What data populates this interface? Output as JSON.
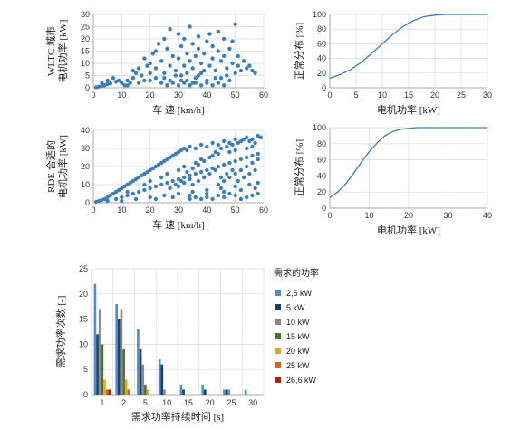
{
  "chart_data": [
    {
      "type": "scatter",
      "ylabel": [
        "WLTC 城市",
        "电机功率 [kW]"
      ],
      "xlabel": "车 速 [km/h]",
      "xlim": [
        0,
        60
      ],
      "ylim": [
        0,
        30
      ],
      "xticks": [
        0,
        10,
        20,
        30,
        40,
        50,
        60
      ],
      "yticks": [
        0,
        5,
        10,
        15,
        20,
        25,
        30
      ],
      "grid": true,
      "color": "#3a7fb8",
      "points": [
        [
          1,
          0.2
        ],
        [
          2,
          0.5
        ],
        [
          3,
          0.8
        ],
        [
          4,
          1
        ],
        [
          5,
          1.5
        ],
        [
          6,
          1.8
        ],
        [
          8,
          2.5
        ],
        [
          9,
          3
        ],
        [
          3,
          2
        ],
        [
          5,
          3
        ],
        [
          7,
          4
        ],
        [
          12,
          1
        ],
        [
          13,
          2
        ],
        [
          14,
          4
        ],
        [
          15,
          6
        ],
        [
          14,
          7
        ],
        [
          16,
          8
        ],
        [
          17,
          5
        ],
        [
          18,
          12
        ],
        [
          19,
          9
        ],
        [
          20,
          10
        ],
        [
          20,
          3
        ],
        [
          21,
          14
        ],
        [
          22,
          15
        ],
        [
          22,
          8
        ],
        [
          23,
          18
        ],
        [
          24,
          11
        ],
        [
          25,
          20
        ],
        [
          25,
          6
        ],
        [
          26,
          16
        ],
        [
          27,
          9
        ],
        [
          27,
          24
        ],
        [
          28,
          13
        ],
        [
          29,
          7
        ],
        [
          30,
          22
        ],
        [
          30,
          12
        ],
        [
          31,
          5
        ],
        [
          31,
          17
        ],
        [
          32,
          20
        ],
        [
          32,
          9
        ],
        [
          33,
          14
        ],
        [
          33,
          3
        ],
        [
          34,
          11
        ],
        [
          34,
          25
        ],
        [
          35,
          8
        ],
        [
          35,
          18
        ],
        [
          36,
          13
        ],
        [
          36,
          4
        ],
        [
          37,
          21
        ],
        [
          37,
          16
        ],
        [
          38,
          10
        ],
        [
          38,
          6
        ],
        [
          39,
          14
        ],
        [
          40,
          19
        ],
        [
          40,
          3
        ],
        [
          41,
          22
        ],
        [
          41,
          9
        ],
        [
          42,
          12
        ],
        [
          42,
          17
        ],
        [
          43,
          7
        ],
        [
          44,
          15
        ],
        [
          44,
          23
        ],
        [
          45,
          11
        ],
        [
          45,
          4
        ],
        [
          46,
          20
        ],
        [
          46,
          13
        ],
        [
          47,
          8
        ],
        [
          48,
          16
        ],
        [
          49,
          10
        ],
        [
          49,
          19
        ],
        [
          50,
          6
        ],
        [
          51,
          13
        ],
        [
          51,
          9
        ],
        [
          52,
          7
        ],
        [
          53,
          11
        ],
        [
          54,
          8
        ],
        [
          55,
          9
        ],
        [
          56,
          7
        ],
        [
          57,
          6
        ],
        [
          50,
          26
        ],
        [
          26,
          1
        ],
        [
          28,
          2
        ],
        [
          30,
          1
        ],
        [
          32,
          2
        ],
        [
          34,
          1
        ],
        [
          36,
          2
        ],
        [
          38,
          1
        ],
        [
          40,
          2
        ],
        [
          42,
          1
        ],
        [
          44,
          2
        ],
        [
          46,
          1
        ],
        [
          48,
          3
        ],
        [
          25,
          4
        ],
        [
          27,
          3
        ],
        [
          29,
          5
        ],
        [
          31,
          3
        ],
        [
          33,
          6
        ],
        [
          35,
          2
        ],
        [
          37,
          5
        ],
        [
          39,
          7
        ],
        [
          43,
          4
        ],
        [
          47,
          5
        ],
        [
          20,
          6
        ],
        [
          18,
          3
        ],
        [
          16,
          2
        ],
        [
          22,
          4
        ],
        [
          24,
          2
        ],
        [
          12,
          3
        ],
        [
          10,
          2
        ],
        [
          11,
          1
        ]
      ]
    },
    {
      "type": "line",
      "ylabel": "正常分布 [%]",
      "xlabel": "电机功率 [kW]",
      "xlim": [
        0,
        30
      ],
      "ylim": [
        0,
        100
      ],
      "xticks": [
        0,
        5,
        10,
        15,
        20,
        25,
        30
      ],
      "yticks": [
        0,
        20,
        40,
        60,
        80,
        100
      ],
      "grid": true,
      "color": "#3a7fb8",
      "x": [
        0,
        2,
        4,
        6,
        8,
        10,
        12,
        14,
        16,
        18,
        20,
        22,
        24,
        26,
        28,
        30
      ],
      "y": [
        13,
        18,
        25,
        35,
        47,
        60,
        73,
        84,
        92,
        97,
        99,
        100,
        100,
        100,
        100,
        100
      ]
    },
    {
      "type": "scatter",
      "ylabel": [
        "RDE 合适的",
        "电机功率 [kW]"
      ],
      "xlabel": "车 速 [km/h]",
      "xlim": [
        0,
        60
      ],
      "ylim": [
        0,
        40
      ],
      "xticks": [
        0,
        10,
        20,
        30,
        40,
        50,
        60
      ],
      "yticks": [
        0,
        10,
        20,
        30,
        40
      ],
      "grid": true,
      "color": "#3a7fb8",
      "points": [
        [
          1,
          0.5
        ],
        [
          2,
          1
        ],
        [
          3,
          1.5
        ],
        [
          4,
          2
        ],
        [
          5,
          3
        ],
        [
          6,
          4
        ],
        [
          7,
          5
        ],
        [
          8,
          6
        ],
        [
          9,
          7
        ],
        [
          10,
          8
        ],
        [
          11,
          9
        ],
        [
          12,
          10
        ],
        [
          13,
          11
        ],
        [
          14,
          12
        ],
        [
          15,
          13
        ],
        [
          16,
          14
        ],
        [
          17,
          15
        ],
        [
          18,
          16
        ],
        [
          19,
          17
        ],
        [
          20,
          18
        ],
        [
          21,
          19
        ],
        [
          22,
          20
        ],
        [
          23,
          21
        ],
        [
          24,
          22
        ],
        [
          25,
          23
        ],
        [
          26,
          24
        ],
        [
          27,
          25
        ],
        [
          28,
          26
        ],
        [
          29,
          27
        ],
        [
          30,
          28
        ],
        [
          31,
          29
        ],
        [
          32,
          30
        ],
        [
          33,
          29
        ],
        [
          34,
          31
        ],
        [
          36,
          30
        ],
        [
          38,
          32
        ],
        [
          40,
          31
        ],
        [
          42,
          33
        ],
        [
          44,
          32
        ],
        [
          46,
          34
        ],
        [
          48,
          33
        ],
        [
          50,
          35
        ],
        [
          52,
          34
        ],
        [
          54,
          36
        ],
        [
          56,
          35
        ],
        [
          58,
          37
        ],
        [
          5,
          1
        ],
        [
          8,
          2
        ],
        [
          10,
          3
        ],
        [
          12,
          4
        ],
        [
          14,
          5
        ],
        [
          16,
          6
        ],
        [
          18,
          7
        ],
        [
          20,
          8
        ],
        [
          22,
          9
        ],
        [
          24,
          10
        ],
        [
          26,
          11
        ],
        [
          28,
          12
        ],
        [
          30,
          13
        ],
        [
          32,
          14
        ],
        [
          34,
          15
        ],
        [
          36,
          16
        ],
        [
          38,
          17
        ],
        [
          40,
          18
        ],
        [
          42,
          19
        ],
        [
          44,
          20
        ],
        [
          46,
          21
        ],
        [
          48,
          22
        ],
        [
          50,
          23
        ],
        [
          52,
          24
        ],
        [
          54,
          25
        ],
        [
          56,
          26
        ],
        [
          58,
          27
        ],
        [
          10,
          1
        ],
        [
          15,
          2
        ],
        [
          20,
          3
        ],
        [
          25,
          4
        ],
        [
          30,
          5
        ],
        [
          35,
          6
        ],
        [
          40,
          7
        ],
        [
          45,
          8
        ],
        [
          50,
          9
        ],
        [
          55,
          10
        ],
        [
          58,
          11
        ],
        [
          12,
          6
        ],
        [
          18,
          10
        ],
        [
          24,
          14
        ],
        [
          30,
          18
        ],
        [
          36,
          22
        ],
        [
          42,
          26
        ],
        [
          48,
          28
        ],
        [
          54,
          30
        ],
        [
          20,
          12
        ],
        [
          26,
          16
        ],
        [
          32,
          20
        ],
        [
          38,
          24
        ],
        [
          44,
          27
        ],
        [
          50,
          29
        ],
        [
          56,
          31
        ],
        [
          22,
          2
        ],
        [
          28,
          3
        ],
        [
          34,
          4
        ],
        [
          40,
          5
        ],
        [
          46,
          6
        ],
        [
          52,
          7
        ],
        [
          57,
          8
        ],
        [
          45,
          14
        ],
        [
          47,
          16
        ],
        [
          49,
          18
        ],
        [
          51,
          12
        ],
        [
          53,
          14
        ],
        [
          55,
          16
        ],
        [
          57,
          18
        ],
        [
          44,
          10
        ],
        [
          46,
          12
        ],
        [
          48,
          14
        ],
        [
          50,
          16
        ],
        [
          52,
          18
        ],
        [
          54,
          20
        ],
        [
          56,
          22
        ],
        [
          58,
          24
        ],
        [
          35,
          10
        ],
        [
          37,
          12
        ],
        [
          39,
          14
        ],
        [
          41,
          16
        ],
        [
          43,
          18
        ],
        [
          30,
          9
        ],
        [
          32,
          11
        ],
        [
          34,
          13
        ],
        [
          27,
          8
        ],
        [
          29,
          10
        ],
        [
          31,
          12
        ],
        [
          33,
          17
        ],
        [
          35,
          19
        ],
        [
          37,
          21
        ],
        [
          39,
          23
        ],
        [
          41,
          25
        ],
        [
          43,
          28
        ],
        [
          45,
          30
        ],
        [
          47,
          31
        ],
        [
          49,
          32
        ],
        [
          51,
          33
        ],
        [
          53,
          35
        ],
        [
          55,
          34
        ],
        [
          57,
          33
        ],
        [
          59,
          36
        ],
        [
          52,
          2
        ],
        [
          54,
          3
        ],
        [
          56,
          4
        ],
        [
          58,
          5
        ],
        [
          50,
          4
        ],
        [
          48,
          5
        ],
        [
          46,
          3
        ],
        [
          44,
          4
        ],
        [
          42,
          2
        ],
        [
          40,
          3
        ],
        [
          38,
          2
        ],
        [
          36,
          3
        ],
        [
          34,
          2
        ]
      ]
    },
    {
      "type": "line",
      "ylabel": "正常分布 [%]",
      "xlabel": "电机功率 [kW]",
      "xlim": [
        0,
        40
      ],
      "ylim": [
        0,
        100
      ],
      "xticks": [
        0,
        10,
        20,
        30,
        40
      ],
      "yticks": [
        0,
        20,
        40,
        60,
        80,
        100
      ],
      "grid": true,
      "color": "#3a7fb8",
      "x": [
        0,
        2,
        4,
        6,
        8,
        10,
        12,
        14,
        16,
        18,
        20,
        22,
        24,
        28,
        32,
        36,
        40
      ],
      "y": [
        13,
        20,
        30,
        43,
        57,
        70,
        81,
        90,
        95,
        98,
        99,
        100,
        100,
        100,
        100,
        100,
        100
      ]
    },
    {
      "type": "bar",
      "ylabel": "需求功率次数 [-]",
      "xlabel": "需求功率持续时间 [s]",
      "ylim": [
        0,
        25
      ],
      "yticks": [
        0,
        5,
        10,
        15,
        20,
        25
      ],
      "grid": true,
      "categories": [
        "1",
        "2",
        "5",
        "10",
        "15",
        "20",
        "25",
        "30"
      ],
      "legend_title": "需求的功率",
      "legend_position": "right",
      "series": [
        {
          "name": "2,5 kW",
          "color": "#4f8fc9",
          "values": [
            22,
            18,
            13,
            7,
            2,
            2,
            1,
            1
          ]
        },
        {
          "name": "5 kW",
          "color": "#1f3f66",
          "values": [
            12,
            15,
            9,
            6,
            1,
            1,
            1,
            0
          ]
        },
        {
          "name": "10 kW",
          "color": "#8a8a8a",
          "values": [
            17,
            17,
            6,
            1,
            0,
            0,
            1,
            0
          ]
        },
        {
          "name": "15 kW",
          "color": "#3f7a2e",
          "values": [
            10,
            9,
            2,
            0,
            0,
            0,
            0,
            0
          ]
        },
        {
          "name": "20 kW",
          "color": "#e1a826",
          "values": [
            3,
            3,
            1,
            0,
            0,
            0,
            0,
            0
          ]
        },
        {
          "name": "25 kW",
          "color": "#e06020",
          "values": [
            1,
            1,
            0,
            0,
            0,
            0,
            0,
            0
          ]
        },
        {
          "name": "26,6 kW",
          "color": "#c01818",
          "values": [
            1,
            0,
            0,
            0,
            0,
            0,
            0,
            0
          ]
        }
      ]
    }
  ]
}
